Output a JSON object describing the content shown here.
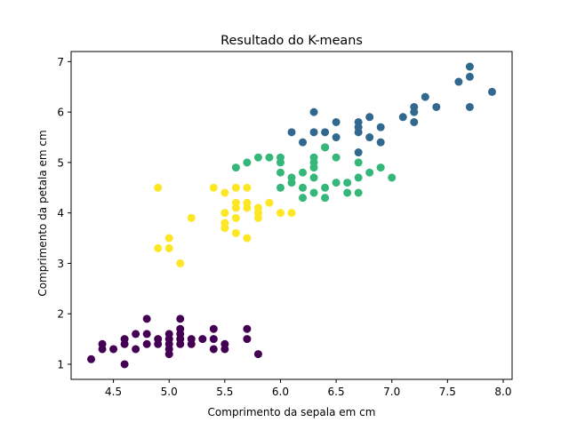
{
  "chart_data": {
    "type": "scatter",
    "title": "Resultado do K-means",
    "xlabel": "Comprimento da sepala em cm",
    "ylabel": "Comprimento da petala em cm",
    "xlim": [
      4.12,
      8.08
    ],
    "ylim": [
      0.7,
      7.2
    ],
    "xticks": [
      4.5,
      5.0,
      5.5,
      6.0,
      6.5,
      7.0,
      7.5,
      8.0
    ],
    "xtick_labels": [
      "4.5",
      "5.0",
      "5.5",
      "6.0",
      "6.5",
      "7.0",
      "7.5",
      "8.0"
    ],
    "yticks": [
      1,
      2,
      3,
      4,
      5,
      6,
      7
    ],
    "ytick_labels": [
      "1",
      "2",
      "3",
      "4",
      "5",
      "6",
      "7"
    ],
    "grid": false,
    "legend": "none",
    "series": [
      {
        "color": "#440154",
        "points": [
          [
            4.3,
            1.1
          ],
          [
            4.4,
            1.3
          ],
          [
            4.4,
            1.4
          ],
          [
            4.5,
            1.3
          ],
          [
            4.6,
            1.0
          ],
          [
            4.6,
            1.4
          ],
          [
            4.6,
            1.5
          ],
          [
            4.7,
            1.3
          ],
          [
            4.7,
            1.6
          ],
          [
            4.8,
            1.4
          ],
          [
            4.8,
            1.6
          ],
          [
            4.8,
            1.9
          ],
          [
            4.9,
            1.4
          ],
          [
            4.9,
            1.5
          ],
          [
            5.0,
            1.2
          ],
          [
            5.0,
            1.3
          ],
          [
            5.0,
            1.4
          ],
          [
            5.0,
            1.5
          ],
          [
            5.0,
            1.6
          ],
          [
            5.1,
            1.4
          ],
          [
            5.1,
            1.5
          ],
          [
            5.1,
            1.6
          ],
          [
            5.1,
            1.7
          ],
          [
            5.1,
            1.9
          ],
          [
            5.2,
            1.4
          ],
          [
            5.2,
            1.5
          ],
          [
            5.3,
            1.5
          ],
          [
            5.4,
            1.3
          ],
          [
            5.4,
            1.5
          ],
          [
            5.4,
            1.7
          ],
          [
            5.5,
            1.3
          ],
          [
            5.5,
            1.4
          ],
          [
            5.7,
            1.5
          ],
          [
            5.7,
            1.7
          ],
          [
            5.8,
            1.2
          ]
        ]
      },
      {
        "color": "#31688e",
        "points": [
          [
            6.1,
            5.6
          ],
          [
            6.2,
            5.4
          ],
          [
            6.3,
            5.6
          ],
          [
            6.3,
            6.0
          ],
          [
            6.4,
            5.3
          ],
          [
            6.4,
            5.6
          ],
          [
            6.5,
            5.5
          ],
          [
            6.5,
            5.8
          ],
          [
            6.7,
            5.2
          ],
          [
            6.7,
            5.6
          ],
          [
            6.7,
            5.7
          ],
          [
            6.7,
            5.8
          ],
          [
            6.8,
            5.5
          ],
          [
            6.8,
            5.9
          ],
          [
            6.9,
            5.4
          ],
          [
            6.9,
            5.7
          ],
          [
            7.1,
            5.9
          ],
          [
            7.2,
            5.8
          ],
          [
            7.2,
            6.0
          ],
          [
            7.2,
            6.1
          ],
          [
            7.3,
            6.3
          ],
          [
            7.4,
            6.1
          ],
          [
            7.6,
            6.6
          ],
          [
            7.7,
            6.1
          ],
          [
            7.7,
            6.7
          ],
          [
            7.7,
            6.9
          ],
          [
            7.9,
            6.4
          ]
        ]
      },
      {
        "color": "#35b779",
        "points": [
          [
            5.6,
            4.9
          ],
          [
            5.7,
            5.0
          ],
          [
            5.8,
            5.1
          ],
          [
            5.9,
            5.1
          ],
          [
            6.0,
            4.5
          ],
          [
            6.0,
            4.8
          ],
          [
            6.0,
            5.0
          ],
          [
            6.0,
            5.1
          ],
          [
            6.1,
            4.6
          ],
          [
            6.1,
            4.7
          ],
          [
            6.2,
            4.3
          ],
          [
            6.2,
            4.5
          ],
          [
            6.2,
            4.8
          ],
          [
            6.3,
            4.4
          ],
          [
            6.3,
            4.7
          ],
          [
            6.3,
            4.9
          ],
          [
            6.3,
            5.0
          ],
          [
            6.3,
            5.1
          ],
          [
            6.4,
            4.3
          ],
          [
            6.4,
            4.5
          ],
          [
            6.4,
            5.3
          ],
          [
            6.5,
            4.6
          ],
          [
            6.5,
            5.1
          ],
          [
            6.6,
            4.4
          ],
          [
            6.6,
            4.6
          ],
          [
            6.7,
            4.4
          ],
          [
            6.7,
            4.7
          ],
          [
            6.7,
            5.0
          ],
          [
            6.8,
            4.8
          ],
          [
            6.9,
            4.9
          ],
          [
            7.0,
            4.7
          ]
        ]
      },
      {
        "color": "#fde725",
        "points": [
          [
            4.9,
            3.3
          ],
          [
            4.9,
            4.5
          ],
          [
            5.0,
            3.3
          ],
          [
            5.0,
            3.5
          ],
          [
            5.1,
            3.0
          ],
          [
            5.2,
            3.9
          ],
          [
            5.4,
            4.5
          ],
          [
            5.5,
            3.7
          ],
          [
            5.5,
            3.8
          ],
          [
            5.5,
            4.0
          ],
          [
            5.5,
            4.4
          ],
          [
            5.6,
            3.6
          ],
          [
            5.6,
            3.9
          ],
          [
            5.6,
            4.1
          ],
          [
            5.6,
            4.2
          ],
          [
            5.6,
            4.5
          ],
          [
            5.7,
            3.5
          ],
          [
            5.7,
            4.1
          ],
          [
            5.7,
            4.2
          ],
          [
            5.7,
            4.5
          ],
          [
            5.8,
            3.9
          ],
          [
            5.8,
            4.0
          ],
          [
            5.8,
            4.1
          ],
          [
            5.9,
            4.2
          ],
          [
            6.0,
            4.0
          ],
          [
            6.1,
            4.0
          ]
        ]
      }
    ]
  }
}
